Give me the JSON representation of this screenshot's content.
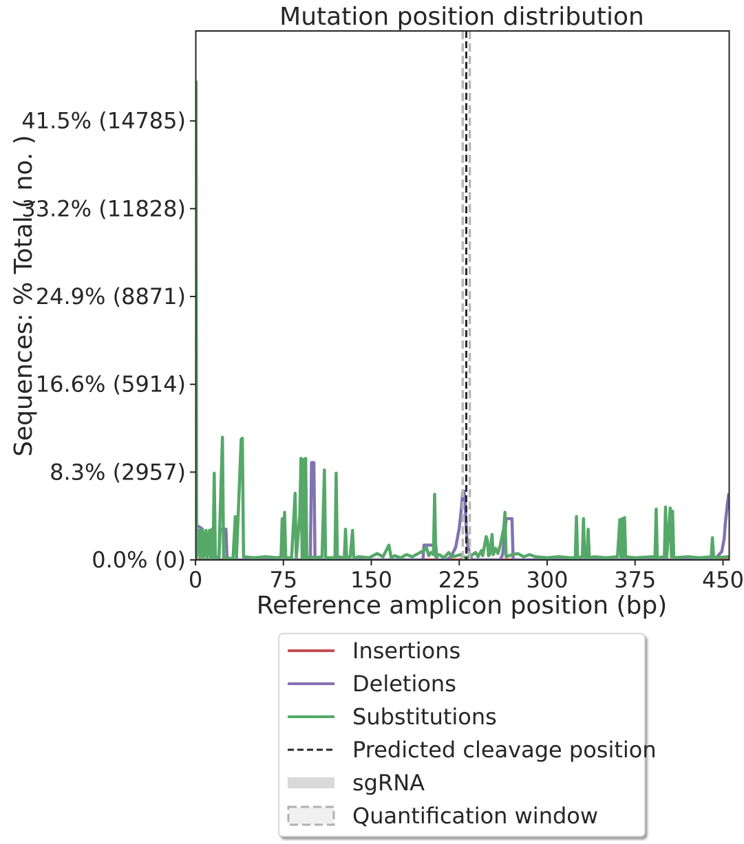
{
  "chart_data": {
    "type": "line",
    "title": "Mutation position distribution",
    "xlabel": "Reference amplicon position (bp)",
    "ylabel": "Sequences: % Total ( no. )",
    "xlim": [
      0,
      455
    ],
    "ylim": [
      0,
      50
    ],
    "x_ticks": [
      0,
      75,
      150,
      225,
      300,
      375,
      450
    ],
    "x_tick_labels": [
      "0",
      "75",
      "150",
      "225",
      "300",
      "375",
      "450"
    ],
    "y_ticks": [
      0,
      8.3,
      16.6,
      24.9,
      33.2,
      41.5
    ],
    "y_tick_labels": [
      "0.0% (0)",
      "8.3% (2957)",
      "16.6% (5914)",
      "24.9% (8871)",
      "33.2% (11828)",
      "41.5% (14785)"
    ],
    "grid": false,
    "legend_placement": "below",
    "series": [
      {
        "name": "Insertions",
        "color": "#c44e52",
        "style": "solid",
        "points": [
          [
            0,
            0
          ],
          [
            225,
            0
          ],
          [
            228,
            0.1
          ],
          [
            230,
            0.2
          ],
          [
            232,
            0.1
          ],
          [
            235,
            0
          ],
          [
            455,
            0
          ]
        ]
      },
      {
        "name": "Deletions",
        "color": "#8172b2",
        "style": "solid",
        "points": [
          [
            0,
            3.2
          ],
          [
            2,
            3.2
          ],
          [
            5,
            3
          ],
          [
            7,
            0
          ],
          [
            20,
            0
          ],
          [
            21,
            2.9
          ],
          [
            22,
            2.9
          ],
          [
            26,
            2.9
          ],
          [
            27,
            0
          ],
          [
            98,
            0
          ],
          [
            99,
            9.2
          ],
          [
            101,
            9.2
          ],
          [
            102,
            0
          ],
          [
            194,
            0
          ],
          [
            195,
            1.4
          ],
          [
            205,
            1.4
          ],
          [
            206,
            0
          ],
          [
            214,
            0
          ],
          [
            218,
            0.3
          ],
          [
            222,
            1.2
          ],
          [
            225,
            3
          ],
          [
            227,
            5
          ],
          [
            228,
            6.4
          ],
          [
            229,
            6.5
          ],
          [
            230,
            5.5
          ],
          [
            231,
            3
          ],
          [
            232,
            1.5
          ],
          [
            234,
            0.5
          ],
          [
            236,
            0
          ],
          [
            260,
            0
          ],
          [
            262,
            0.5
          ],
          [
            264,
            2.5
          ],
          [
            265,
            3.9
          ],
          [
            267,
            3.9
          ],
          [
            270,
            3.9
          ],
          [
            271,
            0
          ],
          [
            440,
            0
          ],
          [
            445,
            0.3
          ],
          [
            449,
            0.8
          ],
          [
            451,
            2
          ],
          [
            452,
            3.5
          ],
          [
            454,
            5.5
          ],
          [
            455,
            6.3
          ]
        ]
      },
      {
        "name": "Substitutions",
        "color": "#55a868",
        "style": "solid",
        "points": [
          [
            0,
            0.5
          ],
          [
            0.5,
            45.2
          ],
          [
            1,
            0.3
          ],
          [
            3,
            2.8
          ],
          [
            4,
            0.2
          ],
          [
            6,
            2.9
          ],
          [
            7,
            0.2
          ],
          [
            9,
            2.8
          ],
          [
            10,
            0.2
          ],
          [
            12,
            2.8
          ],
          [
            13,
            0.2
          ],
          [
            14,
            2.9
          ],
          [
            15,
            0.2
          ],
          [
            16,
            8.2
          ],
          [
            17,
            0.2
          ],
          [
            20,
            0.3
          ],
          [
            23,
            11.6
          ],
          [
            24,
            0.2
          ],
          [
            27,
            0.2
          ],
          [
            32,
            0.1
          ],
          [
            34,
            4.1
          ],
          [
            35,
            0.2
          ],
          [
            39,
            11.4
          ],
          [
            40,
            11.5
          ],
          [
            41,
            0.3
          ],
          [
            50,
            0.2
          ],
          [
            60,
            0.3
          ],
          [
            70,
            0.2
          ],
          [
            73,
            0.3
          ],
          [
            74,
            3.9
          ],
          [
            75,
            0.3
          ],
          [
            76,
            4.5
          ],
          [
            77,
            0.2
          ],
          [
            82,
            0.2
          ],
          [
            85,
            6.3
          ],
          [
            86,
            0.2
          ],
          [
            89,
            4.2
          ],
          [
            90,
            9.6
          ],
          [
            91,
            0.2
          ],
          [
            92,
            9.5
          ],
          [
            93,
            0.2
          ],
          [
            94,
            9.6
          ],
          [
            95,
            0.2
          ],
          [
            98,
            0.3
          ],
          [
            102,
            0.2
          ],
          [
            108,
            0.3
          ],
          [
            110,
            8.5
          ],
          [
            111,
            0.2
          ],
          [
            119,
            0.2
          ],
          [
            120,
            8.2
          ],
          [
            121,
            0.3
          ],
          [
            127,
            0.2
          ],
          [
            128,
            2.9
          ],
          [
            129,
            0.2
          ],
          [
            132,
            0.3
          ],
          [
            134,
            2.8
          ],
          [
            135,
            0.2
          ],
          [
            140,
            0.3
          ],
          [
            148,
            0.2
          ],
          [
            155,
            0.6
          ],
          [
            160,
            0.3
          ],
          [
            165,
            1.4
          ],
          [
            167,
            0.2
          ],
          [
            170,
            0.4
          ],
          [
            175,
            0.2
          ],
          [
            180,
            0.5
          ],
          [
            185,
            0.3
          ],
          [
            190,
            0.6
          ],
          [
            195,
            0.9
          ],
          [
            197,
            1.2
          ],
          [
            199,
            0.4
          ],
          [
            201,
            0.7
          ],
          [
            203,
            0.5
          ],
          [
            204,
            6.2
          ],
          [
            205,
            0.3
          ],
          [
            208,
            0.5
          ],
          [
            212,
            0.2
          ],
          [
            216,
            0.7
          ],
          [
            219,
            0.3
          ],
          [
            223,
            0.4
          ],
          [
            226,
            0.5
          ],
          [
            230,
            0.2
          ],
          [
            235,
            0.4
          ],
          [
            239,
            0.7
          ],
          [
            241,
            0.3
          ],
          [
            244,
            0.9
          ],
          [
            245,
            0.4
          ],
          [
            247,
            1.6
          ],
          [
            248,
            2.2
          ],
          [
            249,
            1.9
          ],
          [
            250,
            0.4
          ],
          [
            251,
            0.5
          ],
          [
            253,
            2.4
          ],
          [
            254,
            0.5
          ],
          [
            256,
            1.1
          ],
          [
            258,
            0.6
          ],
          [
            260,
            1.4
          ],
          [
            263,
            3
          ],
          [
            264,
            4.5
          ],
          [
            265,
            0.3
          ],
          [
            270,
            0.5
          ],
          [
            275,
            0.6
          ],
          [
            280,
            0.3
          ],
          [
            285,
            0.5
          ],
          [
            290,
            0.3
          ],
          [
            300,
            0.2
          ],
          [
            310,
            0.3
          ],
          [
            320,
            0.2
          ],
          [
            324,
            0.2
          ],
          [
            325,
            4.1
          ],
          [
            326,
            0.2
          ],
          [
            330,
            0.3
          ],
          [
            331,
            3.9
          ],
          [
            332,
            0.3
          ],
          [
            334,
            0.2
          ],
          [
            335,
            2.9
          ],
          [
            336,
            0.2
          ],
          [
            340,
            0.3
          ],
          [
            350,
            0.2
          ],
          [
            360,
            0.3
          ],
          [
            362,
            3.8
          ],
          [
            363,
            0.2
          ],
          [
            364,
            3.9
          ],
          [
            365,
            0.3
          ],
          [
            366,
            4
          ],
          [
            367,
            0.3
          ],
          [
            375,
            0.2
          ],
          [
            390,
            0.3
          ],
          [
            392,
            0.2
          ],
          [
            393,
            4.8
          ],
          [
            394,
            0.2
          ],
          [
            400,
            0.3
          ],
          [
            401,
            5
          ],
          [
            402,
            0.2
          ],
          [
            405,
            4.9
          ],
          [
            406,
            0.3
          ],
          [
            407,
            4.6
          ],
          [
            408,
            0.2
          ],
          [
            420,
            0.3
          ],
          [
            430,
            0.2
          ],
          [
            440,
            0.3
          ],
          [
            441,
            2.1
          ],
          [
            442,
            0.2
          ],
          [
            455,
            0.3
          ]
        ]
      }
    ],
    "cleavage_position": 231,
    "sgRNA": [
      209,
      229
    ],
    "quantification_window": [
      228,
      234
    ],
    "legend": [
      {
        "label": "Insertions",
        "style": "line",
        "color": "#c44e52"
      },
      {
        "label": "Deletions",
        "style": "line",
        "color": "#8172b2"
      },
      {
        "label": "Substitutions",
        "style": "line",
        "color": "#55a868"
      },
      {
        "label": "Predicted cleavage position",
        "style": "dashed",
        "color": "#262626"
      },
      {
        "label": "sgRNA",
        "style": "band",
        "color": "#d9d9d9"
      },
      {
        "label": "Quantification window",
        "style": "dashed-box",
        "color": "#b0b0b0"
      }
    ]
  }
}
